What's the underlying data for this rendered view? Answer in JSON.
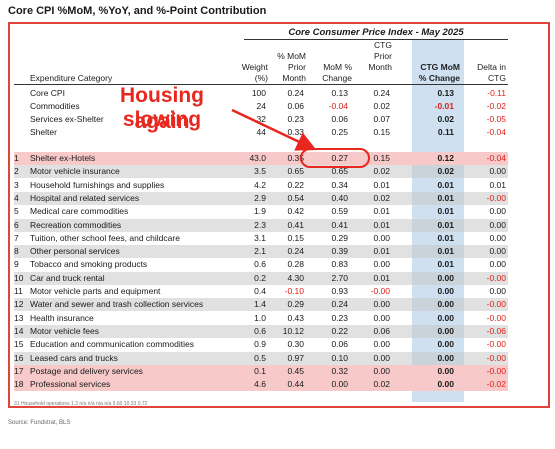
{
  "page_title": "Core CPI %MoM, %YoY, and %-Point Contribution",
  "table_title": "Core Consumer Price Index - May 2025",
  "headers": {
    "category": "Expenditure Category",
    "weight": "Weight",
    "weight_unit": "(%)",
    "prior": [
      "% MoM",
      "Prior",
      "Month"
    ],
    "mom": [
      "MoM %",
      "Change"
    ],
    "ctg_prior": [
      "CTG",
      "Prior",
      "Month"
    ],
    "ctg_mom": [
      "CTG MoM",
      "% Change"
    ],
    "delta": [
      "Delta in",
      "CTG"
    ]
  },
  "summary_rows": [
    {
      "name": "Core CPI",
      "weight": "100",
      "prior": "0.24",
      "mom": "0.13",
      "ctg_prior": "0.24",
      "ctg": "0.13",
      "delta": "-0.11"
    },
    {
      "name": "Commodities",
      "weight": "24",
      "prior": "0.06",
      "mom": "-0.04",
      "ctg_prior": "0.02",
      "ctg": "-0.01",
      "delta": "-0.02"
    },
    {
      "name": "Services ex-Shelter",
      "weight": "32",
      "prior": "0.23",
      "mom": "0.06",
      "ctg_prior": "0.07",
      "ctg": "0.02",
      "delta": "-0.05"
    },
    {
      "name": "Shelter",
      "weight": "44",
      "prior": "0.33",
      "mom": "0.25",
      "ctg_prior": "0.15",
      "ctg": "0.11",
      "delta": "-0.04"
    }
  ],
  "rows": [
    {
      "rank": "1",
      "name": "Shelter ex-Hotels",
      "weight": "43.0",
      "prior": "0.35",
      "mom": "0.27",
      "ctg_prior": "0.15",
      "ctg": "0.12",
      "delta": "-0.04"
    },
    {
      "rank": "2",
      "name": "Motor vehicle insurance",
      "weight": "3.5",
      "prior": "0.65",
      "mom": "0.65",
      "ctg_prior": "0.02",
      "ctg": "0.02",
      "delta": "0.00"
    },
    {
      "rank": "3",
      "name": "Household furnishings and supplies",
      "weight": "4.2",
      "prior": "0.22",
      "mom": "0.34",
      "ctg_prior": "0.01",
      "ctg": "0.01",
      "delta": "0.01"
    },
    {
      "rank": "4",
      "name": "Hospital and related services",
      "weight": "2.9",
      "prior": "0.54",
      "mom": "0.40",
      "ctg_prior": "0.02",
      "ctg": "0.01",
      "delta": "-0.00"
    },
    {
      "rank": "5",
      "name": "Medical care commodities",
      "weight": "1.9",
      "prior": "0.42",
      "mom": "0.59",
      "ctg_prior": "0.01",
      "ctg": "0.01",
      "delta": "0.00"
    },
    {
      "rank": "6",
      "name": "Recreation commodities",
      "weight": "2.3",
      "prior": "0.41",
      "mom": "0.41",
      "ctg_prior": "0.01",
      "ctg": "0.01",
      "delta": "0.00"
    },
    {
      "rank": "7",
      "name": "Tuition, other school fees, and childcare",
      "weight": "3.1",
      "prior": "0.15",
      "mom": "0.29",
      "ctg_prior": "0.00",
      "ctg": "0.01",
      "delta": "0.00"
    },
    {
      "rank": "8",
      "name": "Other personal services",
      "weight": "2.1",
      "prior": "0.24",
      "mom": "0.39",
      "ctg_prior": "0.01",
      "ctg": "0.01",
      "delta": "0.00"
    },
    {
      "rank": "9",
      "name": "Tobacco and smoking products",
      "weight": "0.6",
      "prior": "0.28",
      "mom": "0.83",
      "ctg_prior": "0.00",
      "ctg": "0.01",
      "delta": "0.00"
    },
    {
      "rank": "10",
      "name": "Car and truck rental",
      "weight": "0.2",
      "prior": "4.30",
      "mom": "2.70",
      "ctg_prior": "0.01",
      "ctg": "0.00",
      "delta": "-0.00"
    },
    {
      "rank": "11",
      "name": "Motor vehicle parts and equipment",
      "weight": "0.4",
      "prior": "-0.10",
      "mom": "0.93",
      "ctg_prior": "-0.00",
      "ctg": "0.00",
      "delta": "0.00"
    },
    {
      "rank": "12",
      "name": "Water and sewer and trash collection services",
      "weight": "1.4",
      "prior": "0.29",
      "mom": "0.24",
      "ctg_prior": "0.00",
      "ctg": "0.00",
      "delta": "-0.00"
    },
    {
      "rank": "13",
      "name": "Health insurance",
      "weight": "1.0",
      "prior": "0.43",
      "mom": "0.23",
      "ctg_prior": "0.00",
      "ctg": "0.00",
      "delta": "-0.00"
    },
    {
      "rank": "14",
      "name": "Motor vehicle fees",
      "weight": "0.6",
      "prior": "10.12",
      "mom": "0.22",
      "ctg_prior": "0.06",
      "ctg": "0.00",
      "delta": "-0.06"
    },
    {
      "rank": "15",
      "name": "Education and communication commodities",
      "weight": "0.9",
      "prior": "0.30",
      "mom": "0.06",
      "ctg_prior": "0.00",
      "ctg": "0.00",
      "delta": "-0.00"
    },
    {
      "rank": "16",
      "name": "Leased cars and trucks",
      "weight": "0.5",
      "prior": "0.97",
      "mom": "0.10",
      "ctg_prior": "0.00",
      "ctg": "0.00",
      "delta": "-0.00"
    },
    {
      "rank": "17",
      "name": "Postage and delivery services",
      "weight": "0.1",
      "prior": "0.45",
      "mom": "0.32",
      "ctg_prior": "0.00",
      "ctg": "0.00",
      "delta": "-0.00"
    },
    {
      "rank": "18",
      "name": "Professional services",
      "weight": "4.6",
      "prior": "0.44",
      "mom": "0.00",
      "ctg_prior": "0.02",
      "ctg": "0.00",
      "delta": "-0.02"
    }
  ],
  "footer_row": "31  Household operations   1.3   n/a   n/a   n/a   n/a   9.60   10.33   0.72",
  "annotation": {
    "line1": "Housing slowing",
    "line2": "again"
  },
  "source": "Source: Fundstrat, BLS",
  "colors": {
    "accent_red": "#e8271f",
    "ctg_band": "#cfe0f0",
    "highlight": "#f7c9c9",
    "shade": "#c8c8c8"
  }
}
